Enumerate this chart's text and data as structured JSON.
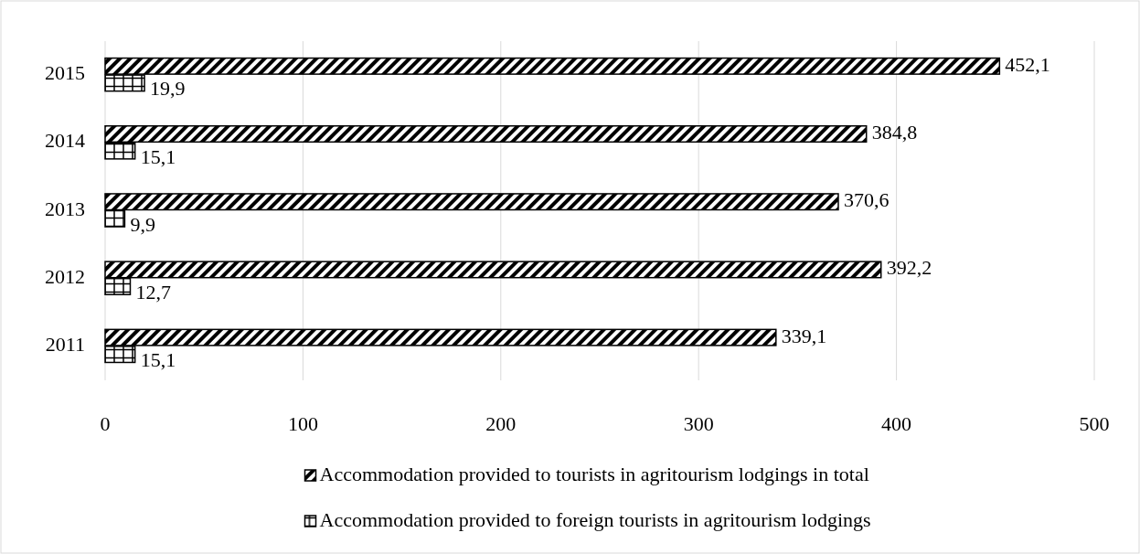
{
  "chart_data": {
    "type": "bar",
    "orientation": "horizontal",
    "categories": [
      "2015",
      "2014",
      "2013",
      "2012",
      "2011"
    ],
    "series": [
      {
        "name": "Accommodation provided to tourists in agritourism lodgings in total",
        "color": "#000000",
        "values": [
          452.1,
          384.8,
          370.6,
          392.2,
          339.1
        ],
        "value_labels": [
          "452,1",
          "384,8",
          "370,6",
          "392,2",
          "339,1"
        ]
      },
      {
        "name": "Accommodation provided to foreign tourists in agritourism lodgings",
        "color": "#000000",
        "values": [
          19.9,
          15.1,
          9.9,
          12.7,
          15.1
        ],
        "value_labels": [
          "19,9",
          "15,1",
          "9,9",
          "12,7",
          "15,1"
        ]
      }
    ],
    "xlim": [
      0,
      500
    ],
    "xticks": [
      0,
      100,
      200,
      300,
      400,
      500
    ],
    "grid": "x",
    "legend": "bottom"
  }
}
